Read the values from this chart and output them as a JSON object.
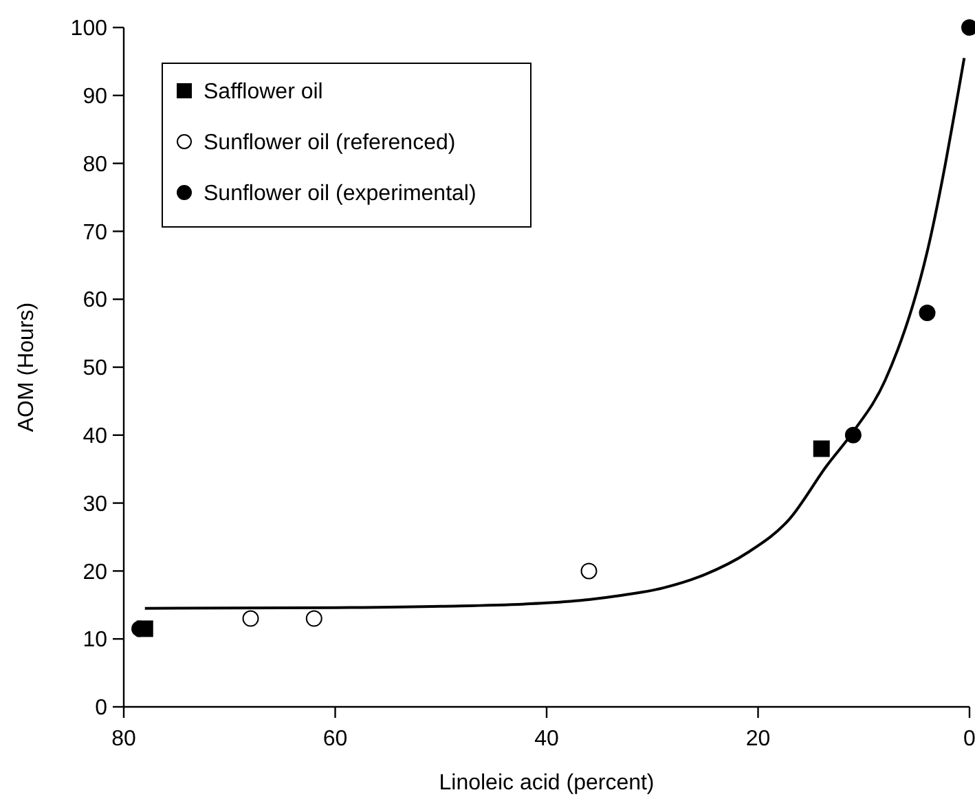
{
  "chart_data": {
    "type": "scatter",
    "xlabel": "Linoleic acid (percent)",
    "ylabel": "AOM (Hours)",
    "xlim": [
      80,
      0
    ],
    "xticks": [
      80,
      60,
      40,
      20,
      0
    ],
    "ylim": [
      0,
      100
    ],
    "yticks": [
      0,
      10,
      20,
      30,
      40,
      50,
      60,
      70,
      80,
      90,
      100
    ],
    "grid": false,
    "legend": "top left",
    "series": [
      {
        "name": "Safflower oil",
        "color": "#000000",
        "marker": "square",
        "x": [
          78,
          14
        ],
        "values": [
          11.5,
          38
        ]
      },
      {
        "name": "Sunflower oil (referenced)",
        "color": "#ffffff",
        "marker": "circle",
        "x": [
          68,
          62,
          36
        ],
        "values": [
          13,
          13,
          20
        ]
      },
      {
        "name": "Sunflower oil (experimental)",
        "color": "#000000",
        "marker": "circle",
        "x": [
          78.5,
          11,
          4,
          0
        ],
        "values": [
          11.5,
          40,
          58,
          100
        ]
      },
      {
        "type": "line",
        "color": "#000000",
        "marker": "none",
        "x": [
          78,
          60,
          50,
          40,
          36,
          33,
          29,
          25,
          21,
          17,
          13.5,
          11,
          8,
          4,
          0.5
        ],
        "values": [
          14.5,
          14.6,
          14.8,
          15.3,
          15.8,
          16.4,
          17.5,
          19.5,
          22.7,
          27.7,
          35.5,
          40.5,
          48,
          67,
          95.5
        ]
      }
    ]
  }
}
